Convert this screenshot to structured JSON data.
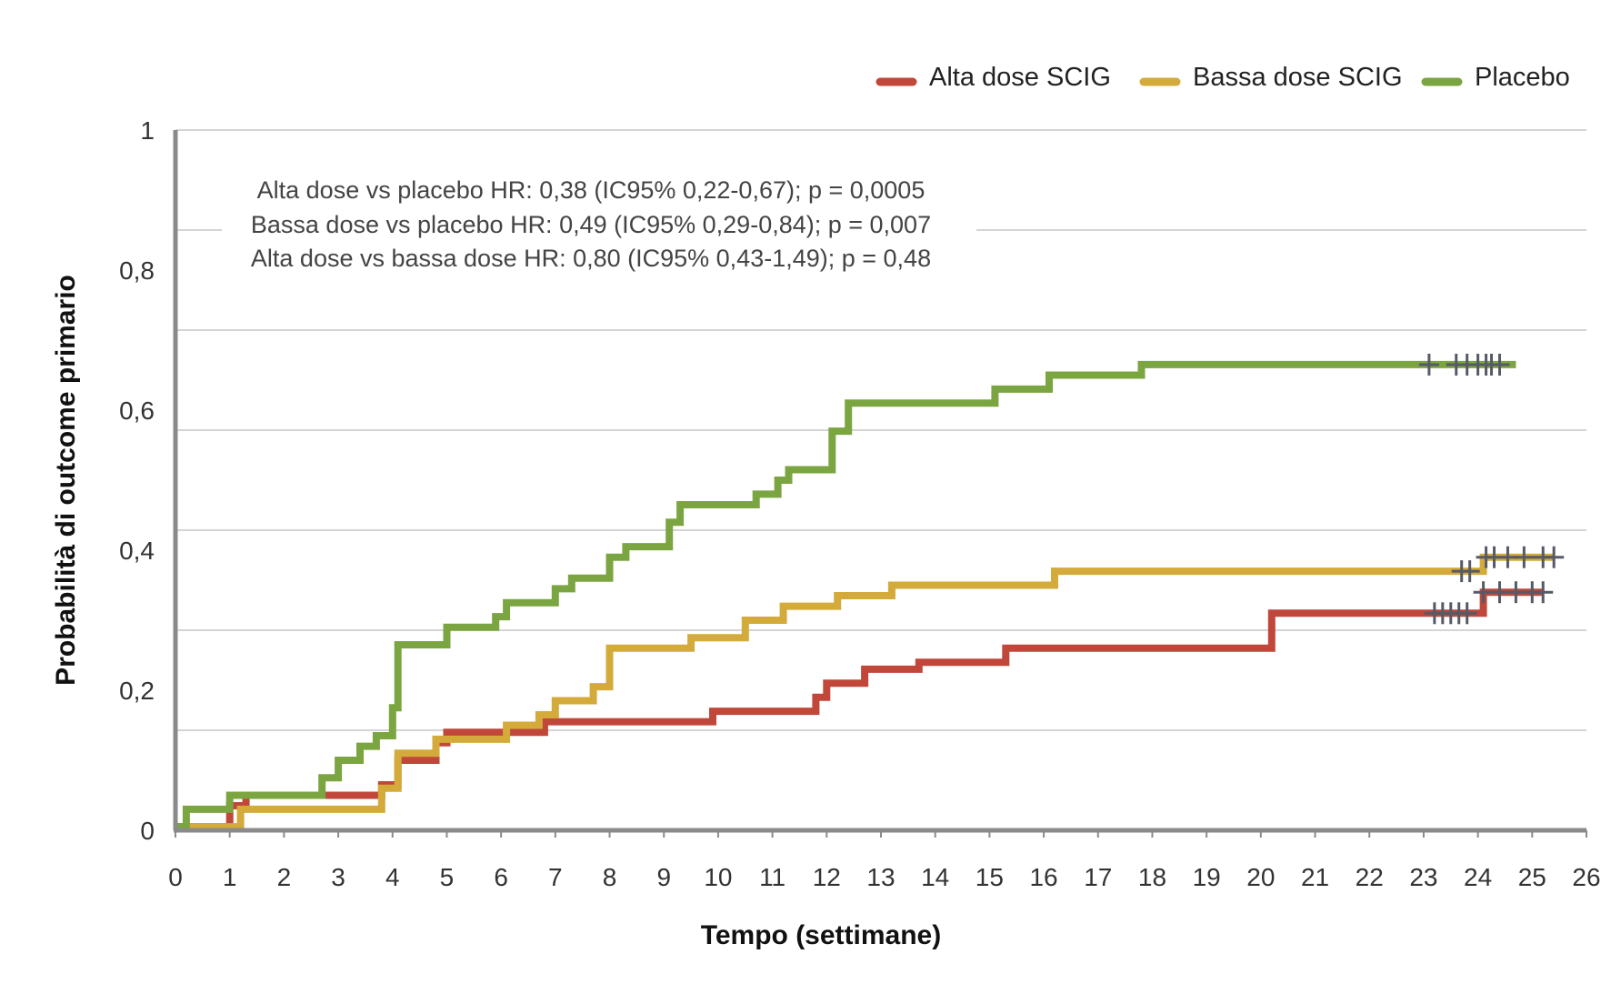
{
  "chart_data": {
    "type": "line",
    "title": "",
    "xlabel": "Tempo (settimane)",
    "ylabel": "Probabilità di outcome primario",
    "xlim": [
      0,
      26
    ],
    "ylim": [
      0,
      1
    ],
    "x_ticks": [
      "0",
      "1",
      "2",
      "3",
      "4",
      "5",
      "6",
      "7",
      "8",
      "9",
      "10",
      "11",
      "12",
      "13",
      "14",
      "15",
      "16",
      "17",
      "18",
      "19",
      "20",
      "21",
      "22",
      "23",
      "24",
      "25",
      "26"
    ],
    "y_ticks": [
      {
        "value": 0,
        "label": "0"
      },
      {
        "value": 0.2,
        "label": "0,2"
      },
      {
        "value": 0.4,
        "label": "0,4"
      },
      {
        "value": 0.6,
        "label": "0,6"
      },
      {
        "value": 0.8,
        "label": "0,8"
      },
      {
        "value": 1,
        "label": "1"
      }
    ],
    "grid": true,
    "legend_position": "top-right",
    "annotations": [
      "Alta dose vs placebo HR: 0,38 (IC95% 0,22-0,67); p = 0,0005",
      "Bassa dose vs placebo HR: 0,49 (IC95% 0,29-0,84); p = 0,007",
      "Alta dose vs bassa dose HR: 0,80 (IC95% 0,43-1,49); p = 0,48"
    ],
    "series": [
      {
        "name": "Alta dose SCIG",
        "color": "#c0473a",
        "points": [
          [
            0,
            0.005
          ],
          [
            1,
            0.005
          ],
          [
            1,
            0.035
          ],
          [
            1.3,
            0.035
          ],
          [
            1.3,
            0.05
          ],
          [
            3.8,
            0.05
          ],
          [
            3.8,
            0.065
          ],
          [
            4.1,
            0.065
          ],
          [
            4.1,
            0.1
          ],
          [
            4.8,
            0.1
          ],
          [
            4.8,
            0.125
          ],
          [
            5.0,
            0.125
          ],
          [
            5.0,
            0.14
          ],
          [
            6.8,
            0.14
          ],
          [
            6.8,
            0.155
          ],
          [
            9.9,
            0.155
          ],
          [
            9.9,
            0.17
          ],
          [
            11.8,
            0.17
          ],
          [
            11.8,
            0.19
          ],
          [
            12.0,
            0.19
          ],
          [
            12.0,
            0.21
          ],
          [
            12.7,
            0.21
          ],
          [
            12.7,
            0.23
          ],
          [
            13.7,
            0.23
          ],
          [
            13.7,
            0.24
          ],
          [
            15.3,
            0.24
          ],
          [
            15.3,
            0.26
          ],
          [
            20.2,
            0.26
          ],
          [
            20.2,
            0.31
          ],
          [
            24.1,
            0.31
          ],
          [
            24.1,
            0.34
          ],
          [
            25.2,
            0.34
          ]
        ],
        "censored": [
          23.2,
          23.35,
          23.5,
          23.65,
          23.8,
          24.1,
          24.4,
          24.7,
          25.0,
          25.2
        ]
      },
      {
        "name": "Bassa dose SCIG",
        "color": "#d4aa3a",
        "points": [
          [
            0,
            0.005
          ],
          [
            1.2,
            0.005
          ],
          [
            1.2,
            0.03
          ],
          [
            3.8,
            0.03
          ],
          [
            3.8,
            0.06
          ],
          [
            4.1,
            0.06
          ],
          [
            4.1,
            0.11
          ],
          [
            4.8,
            0.11
          ],
          [
            4.8,
            0.13
          ],
          [
            6.1,
            0.13
          ],
          [
            6.1,
            0.15
          ],
          [
            6.7,
            0.15
          ],
          [
            6.7,
            0.165
          ],
          [
            7.0,
            0.165
          ],
          [
            7.0,
            0.185
          ],
          [
            7.7,
            0.185
          ],
          [
            7.7,
            0.205
          ],
          [
            8.0,
            0.205
          ],
          [
            8.0,
            0.26
          ],
          [
            9.5,
            0.26
          ],
          [
            9.5,
            0.275
          ],
          [
            10.5,
            0.275
          ],
          [
            10.5,
            0.3
          ],
          [
            11.2,
            0.3
          ],
          [
            11.2,
            0.32
          ],
          [
            12.2,
            0.32
          ],
          [
            12.2,
            0.335
          ],
          [
            13.2,
            0.335
          ],
          [
            13.2,
            0.35
          ],
          [
            16.2,
            0.35
          ],
          [
            16.2,
            0.37
          ],
          [
            24.1,
            0.37
          ],
          [
            24.1,
            0.39
          ],
          [
            25.4,
            0.39
          ]
        ],
        "censored": [
          23.7,
          23.85,
          24.15,
          24.3,
          24.55,
          24.85,
          25.2,
          25.4
        ]
      },
      {
        "name": "Placebo",
        "color": "#7ba541",
        "points": [
          [
            0,
            0.005
          ],
          [
            0.2,
            0.005
          ],
          [
            0.2,
            0.03
          ],
          [
            1,
            0.03
          ],
          [
            1,
            0.05
          ],
          [
            2.7,
            0.05
          ],
          [
            2.7,
            0.075
          ],
          [
            3.0,
            0.075
          ],
          [
            3.0,
            0.1
          ],
          [
            3.4,
            0.1
          ],
          [
            3.4,
            0.12
          ],
          [
            3.7,
            0.12
          ],
          [
            3.7,
            0.135
          ],
          [
            4.0,
            0.135
          ],
          [
            4.0,
            0.175
          ],
          [
            4.1,
            0.175
          ],
          [
            4.1,
            0.265
          ],
          [
            5.0,
            0.265
          ],
          [
            5.0,
            0.29
          ],
          [
            5.9,
            0.29
          ],
          [
            5.9,
            0.305
          ],
          [
            6.1,
            0.305
          ],
          [
            6.1,
            0.325
          ],
          [
            7.0,
            0.325
          ],
          [
            7.0,
            0.345
          ],
          [
            7.3,
            0.345
          ],
          [
            7.3,
            0.36
          ],
          [
            8.0,
            0.36
          ],
          [
            8.0,
            0.39
          ],
          [
            8.3,
            0.39
          ],
          [
            8.3,
            0.405
          ],
          [
            9.1,
            0.405
          ],
          [
            9.1,
            0.44
          ],
          [
            9.3,
            0.44
          ],
          [
            9.3,
            0.465
          ],
          [
            10.7,
            0.465
          ],
          [
            10.7,
            0.48
          ],
          [
            11.1,
            0.48
          ],
          [
            11.1,
            0.5
          ],
          [
            11.3,
            0.5
          ],
          [
            11.3,
            0.515
          ],
          [
            12.1,
            0.515
          ],
          [
            12.1,
            0.57
          ],
          [
            12.4,
            0.57
          ],
          [
            12.4,
            0.61
          ],
          [
            15.1,
            0.61
          ],
          [
            15.1,
            0.63
          ],
          [
            16.1,
            0.63
          ],
          [
            16.1,
            0.65
          ],
          [
            17.8,
            0.65
          ],
          [
            17.8,
            0.665
          ],
          [
            24.7,
            0.665
          ]
        ],
        "censored": [
          23.1,
          23.6,
          23.8,
          24.0,
          24.15,
          24.25,
          24.4
        ]
      }
    ]
  }
}
